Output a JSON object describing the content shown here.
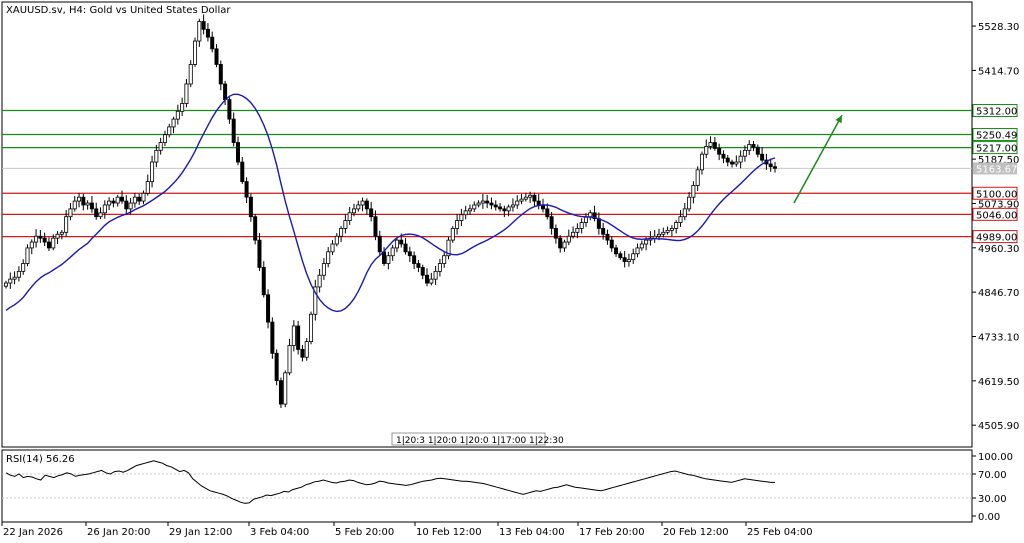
{
  "window": {
    "title": "XAUUSD.sv, H4:  Gold vs United States Dollar"
  },
  "colors": {
    "candle_body": "#000000",
    "ma_line": "#1a1ab8",
    "resistance_line": "#1a8a1a",
    "support_line": "#d11a1a",
    "arrow": "#1a8a1a",
    "grid": "#c8c8c8",
    "rsi_line": "#000000",
    "current_price_box": "#c0c0c0"
  },
  "chart_data": [
    {
      "type": "candlestick",
      "title": "XAUUSD.sv, H4:  Gold vs United States Dollar",
      "y_ticks": [
        "5528.30",
        "5414.70",
        "5187.50",
        "5073.90",
        "4960.30",
        "4846.70",
        "4733.10",
        "4619.50",
        "4505.90"
      ],
      "y_tick_values": [
        5528.3,
        5414.7,
        5187.5,
        5073.9,
        4960.3,
        4846.7,
        4733.1,
        4619.5,
        4505.9
      ],
      "ylim": [
        4450,
        5590
      ],
      "x_tick_labels": [
        "22 Jan 2026",
        "26 Jan 20:00",
        "29 Jan 12:00",
        "3 Feb 04:00",
        "5 Feb 20:00",
        "10 Feb 12:00",
        "13 Feb 04:00",
        "17 Feb 20:00",
        "20 Feb 12:00",
        "25 Feb 04:00"
      ],
      "horizontal_levels": [
        {
          "label": "5312.00",
          "value": 5312.0,
          "kind": "resistance"
        },
        {
          "label": "5250.49",
          "value": 5250.49,
          "kind": "resistance"
        },
        {
          "label": "5217.00",
          "value": 5217.0,
          "kind": "resistance"
        },
        {
          "label": "5100.00",
          "value": 5100.0,
          "kind": "support"
        },
        {
          "label": "5046.00",
          "value": 5046.0,
          "kind": "support"
        },
        {
          "label": "4989.00",
          "value": 4989.0,
          "kind": "support"
        }
      ],
      "current_price": {
        "label": "5163.67",
        "value": 5163.67
      },
      "session_label": "1|20:3 1|20:0 1|20:0 1|17:00 1|22:30",
      "series_close": [
        4870,
        4880,
        4885,
        4900,
        4920,
        4960,
        4975,
        4990,
        4985,
        4975,
        4960,
        4985,
        4995,
        5000,
        5040,
        5060,
        5080,
        5090,
        5070,
        5075,
        5060,
        5040,
        5050,
        5070,
        5080,
        5075,
        5090,
        5080,
        5060,
        5075,
        5090,
        5080,
        5100,
        5130,
        5180,
        5210,
        5230,
        5250,
        5270,
        5290,
        5310,
        5330,
        5380,
        5430,
        5490,
        5540,
        5520,
        5500,
        5470,
        5430,
        5380,
        5340,
        5290,
        5230,
        5180,
        5130,
        5090,
        5040,
        4980,
        4910,
        4840,
        4770,
        4690,
        4620,
        4560,
        4640,
        4710,
        4760,
        4700,
        4680,
        4720,
        4790,
        4860,
        4890,
        4920,
        4950,
        4970,
        4990,
        5010,
        5030,
        5050,
        5060,
        5070,
        5080,
        5060,
        5040,
        4990,
        4950,
        4920,
        4940,
        4960,
        4980,
        4970,
        4950,
        4940,
        4920,
        4910,
        4890,
        4870,
        4880,
        4900,
        4920,
        4940,
        4980,
        5010,
        5030,
        5045,
        5055,
        5060,
        5070,
        5075,
        5080,
        5075,
        5070,
        5065,
        5060,
        5055,
        5065,
        5070,
        5080,
        5085,
        5090,
        5095,
        5080,
        5070,
        5060,
        5040,
        5010,
        4985,
        4960,
        4975,
        4990,
        5000,
        5010,
        5025,
        5040,
        5050,
        5035,
        5010,
        4995,
        4980,
        4960,
        4945,
        4935,
        4925,
        4930,
        4945,
        4960,
        4970,
        4980,
        4985,
        4990,
        4995,
        5000,
        5005,
        5010,
        5025,
        5040,
        5060,
        5090,
        5120,
        5160,
        5200,
        5220,
        5230,
        5215,
        5200,
        5190,
        5180,
        5175,
        5180,
        5195,
        5210,
        5225,
        5218,
        5200,
        5185,
        5175,
        5168,
        5164
      ],
      "ma_period_label": "",
      "indicator": {
        "name": "RSI(14) 56.26",
        "y_ticks": [
          "100.00",
          "70.00",
          "30.00",
          "0.00"
        ],
        "y_tick_values": [
          100,
          70,
          30,
          0
        ],
        "levels": [
          70,
          30
        ],
        "values": [
          72,
          68,
          66,
          70,
          64,
          66,
          65,
          62,
          60,
          68,
          66,
          64,
          67,
          69,
          72,
          70,
          66,
          68,
          69,
          70,
          72,
          74,
          76,
          72,
          70,
          74,
          75,
          73,
          76,
          80,
          84,
          86,
          88,
          90,
          92,
          90,
          88,
          84,
          82,
          78,
          74,
          76,
          72,
          62,
          56,
          50,
          46,
          42,
          40,
          38,
          36,
          33,
          29,
          26,
          23,
          21,
          22,
          28,
          30,
          32,
          35,
          34,
          36,
          38,
          41,
          40,
          44,
          46,
          48,
          52,
          54,
          57,
          58,
          60,
          58,
          56,
          55,
          57,
          58,
          60,
          59,
          56,
          54,
          52,
          53,
          55,
          58,
          57,
          55,
          54,
          53,
          52,
          51,
          52,
          54,
          56,
          58,
          59,
          60,
          62,
          63,
          62,
          61,
          60,
          59,
          58,
          58,
          57,
          56,
          55,
          54,
          52,
          50,
          48,
          46,
          44,
          42,
          40,
          38,
          36,
          38,
          40,
          42,
          41,
          43,
          45,
          47,
          48,
          50,
          52,
          50,
          48,
          47,
          46,
          45,
          44,
          43,
          42,
          44,
          46,
          48,
          50,
          52,
          54,
          56,
          58,
          60,
          62,
          64,
          66,
          68,
          70,
          72,
          74,
          75,
          73,
          71,
          69,
          68,
          66,
          64,
          62,
          61,
          60,
          59,
          58,
          57,
          56,
          58,
          60,
          62,
          61,
          60,
          59,
          58,
          57,
          56,
          56
        ]
      }
    }
  ]
}
